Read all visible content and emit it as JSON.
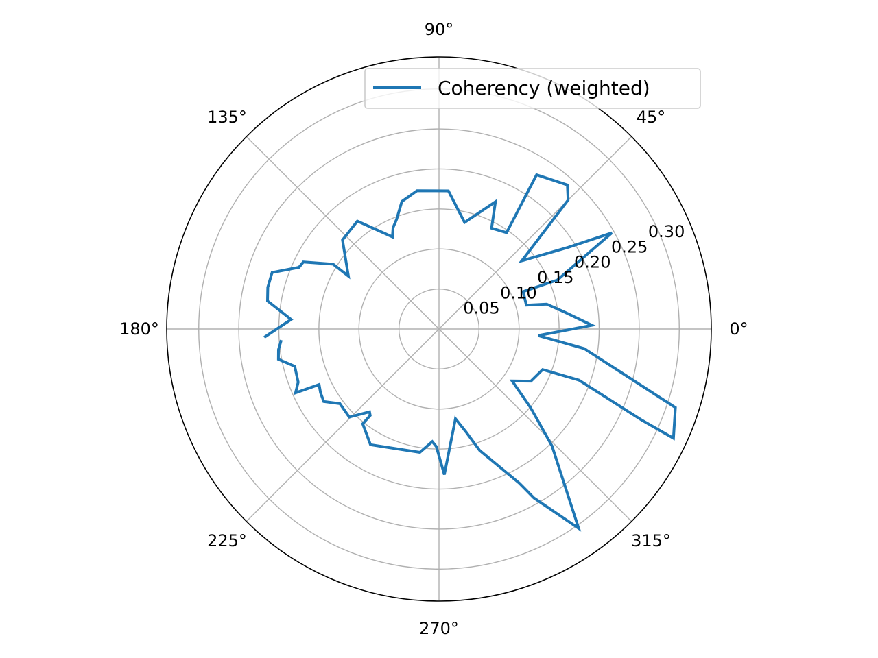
{
  "chart_data": {
    "type": "line",
    "projection": "polar",
    "title": "",
    "theta_unit": "degrees",
    "theta_ticks": [
      "0°",
      "45°",
      "90°",
      "135°",
      "180°",
      "225°",
      "270°",
      "315°"
    ],
    "r_ticks": [
      "0.05",
      "0.10",
      "0.15",
      "0.20",
      "0.25",
      "0.30"
    ],
    "r_tick_values": [
      0.05,
      0.1,
      0.15,
      0.2,
      0.25,
      0.3
    ],
    "rlim": [
      0,
      0.34
    ],
    "grid": true,
    "legend": {
      "placement": "upper-right",
      "entries": [
        "Coherency (weighted)"
      ]
    },
    "series": [
      {
        "name": "Coherency (weighted)",
        "color": "#1f77b4",
        "points": [
          [
            182.5,
            0.217
          ],
          [
            176.3,
            0.185
          ],
          [
            170.7,
            0.217
          ],
          [
            166.3,
            0.22
          ],
          [
            161.3,
            0.22
          ],
          [
            156.2,
            0.191
          ],
          [
            153.7,
            0.189
          ],
          [
            148.5,
            0.155
          ],
          [
            149.7,
            0.131
          ],
          [
            137.3,
            0.164
          ],
          [
            127.1,
            0.169
          ],
          [
            116.8,
            0.129
          ],
          [
            114.4,
            0.139
          ],
          [
            111.1,
            0.147
          ],
          [
            106.2,
            0.166
          ],
          [
            99.0,
            0.175
          ],
          [
            86.1,
            0.173
          ],
          [
            76.5,
            0.137
          ],
          [
            66.1,
            0.174
          ],
          [
            62.5,
            0.142
          ],
          [
            55.0,
            0.147
          ],
          [
            57.7,
            0.228
          ],
          [
            48.3,
            0.241
          ],
          [
            45.0,
            0.228
          ],
          [
            39.5,
            0.134
          ],
          [
            32.3,
            0.191
          ],
          [
            29.1,
            0.247
          ],
          [
            22.5,
            0.16
          ],
          [
            24.0,
            0.115
          ],
          [
            15.3,
            0.113
          ],
          [
            13.0,
            0.138
          ],
          [
            7.5,
            0.159
          ],
          [
            1.4,
            0.191
          ],
          [
            -3.8,
            0.124
          ],
          [
            -7.7,
            0.183
          ],
          [
            -18.4,
            0.311
          ],
          [
            -25.0,
            0.323
          ],
          [
            -24.2,
            0.277
          ],
          [
            -20.1,
            0.186
          ],
          [
            -21.4,
            0.139
          ],
          [
            -29.6,
            0.132
          ],
          [
            -35.4,
            0.112
          ],
          [
            -40.7,
            0.151
          ],
          [
            -46.0,
            0.203
          ],
          [
            -55.0,
            0.304
          ],
          [
            -60.7,
            0.242
          ],
          [
            -62.5,
            0.217
          ],
          [
            -71.5,
            0.16
          ],
          [
            -75.3,
            0.133
          ],
          [
            -79.6,
            0.114
          ],
          [
            -85.7,
            0.157
          ],
          [
            -87.9,
            0.182
          ],
          [
            -91.3,
            0.147
          ],
          [
            -93.4,
            0.141
          ],
          [
            -98.8,
            0.156
          ],
          [
            -120.6,
            0.168
          ],
          [
            -128.8,
            0.152
          ],
          [
            -128.5,
            0.138
          ],
          [
            -130.0,
            0.135
          ],
          [
            -135.5,
            0.157
          ],
          [
            -143.0,
            0.155
          ],
          [
            -147.8,
            0.17
          ],
          [
            -151.7,
            0.168
          ],
          [
            -155.1,
            0.165
          ],
          [
            -156.0,
            0.196
          ],
          [
            -159.3,
            0.188
          ],
          [
            -165.5,
            0.186
          ],
          [
            -169.3,
            0.204
          ],
          [
            -172.7,
            0.202
          ],
          [
            -175.5,
            0.198
          ]
        ]
      }
    ]
  }
}
